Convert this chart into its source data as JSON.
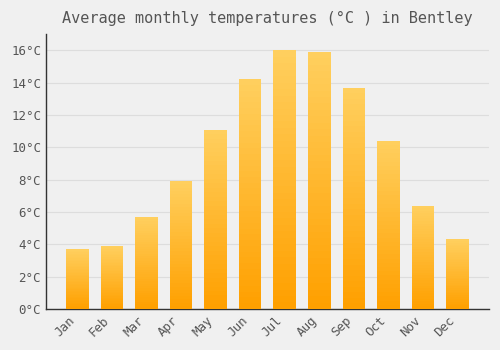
{
  "title": "Average monthly temperatures (°C ) in Bentley",
  "months": [
    "Jan",
    "Feb",
    "Mar",
    "Apr",
    "May",
    "Jun",
    "Jul",
    "Aug",
    "Sep",
    "Oct",
    "Nov",
    "Dec"
  ],
  "values": [
    3.7,
    3.9,
    5.7,
    7.9,
    11.1,
    14.2,
    16.0,
    15.9,
    13.7,
    10.4,
    6.4,
    4.3
  ],
  "bar_color_light": "#FFD060",
  "bar_color_dark": "#FFA000",
  "background_color": "#F0F0F0",
  "grid_color": "#DDDDDD",
  "text_color": "#555555",
  "spine_color": "#333333",
  "ylim": [
    0,
    17
  ],
  "yticks": [
    0,
    2,
    4,
    6,
    8,
    10,
    12,
    14,
    16
  ],
  "title_fontsize": 11,
  "tick_fontsize": 9
}
